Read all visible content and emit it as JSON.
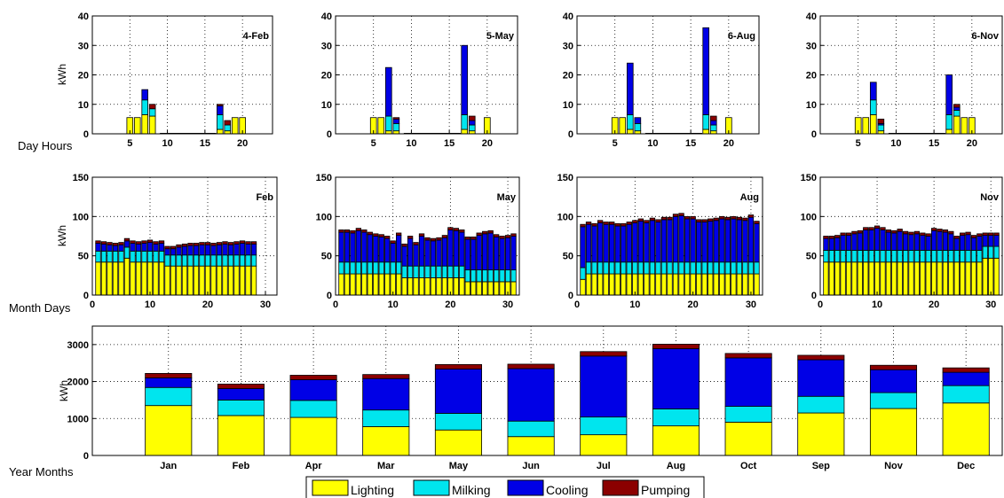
{
  "colors": {
    "Lighting": "#ffff00",
    "Milking": "#00e5ee",
    "Cooling": "#0000e6",
    "Pumping": "#8b0000",
    "grid": "#000000",
    "background": "#ffffff"
  },
  "row_labels": {
    "hours": "Day Hours",
    "days": "Month Days",
    "months": "Year Months"
  },
  "legend": [
    "Lighting",
    "Milking",
    "Cooling",
    "Pumping"
  ],
  "chart_data": [
    {
      "id": "hourly-feb",
      "type": "bar",
      "stacked": true,
      "title": "4-Feb",
      "ylabel": "kWh",
      "ylim": [
        0,
        40
      ],
      "yticks": [
        0,
        10,
        20,
        30,
        40
      ],
      "xlim": [
        0,
        24
      ],
      "xticks": [
        5,
        10,
        15,
        20
      ],
      "grid": true,
      "x": [
        5,
        6,
        7,
        8,
        17,
        18,
        19,
        20
      ],
      "series": [
        {
          "name": "Lighting",
          "values": [
            5.5,
            5.5,
            6.5,
            6,
            1.5,
            1,
            5.5,
            5.5
          ]
        },
        {
          "name": "Milking",
          "values": [
            0,
            0,
            5,
            2.5,
            5,
            2,
            0,
            0
          ]
        },
        {
          "name": "Cooling",
          "values": [
            0,
            0,
            3.5,
            0,
            3,
            0,
            0,
            0
          ]
        },
        {
          "name": "Pumping",
          "values": [
            0,
            0,
            0,
            1.5,
            0.5,
            1.5,
            0,
            0
          ]
        }
      ]
    },
    {
      "id": "hourly-may",
      "type": "bar",
      "stacked": true,
      "title": "5-May",
      "ylabel": "",
      "ylim": [
        0,
        40
      ],
      "yticks": [
        0,
        10,
        20,
        30,
        40
      ],
      "xlim": [
        0,
        24
      ],
      "xticks": [
        5,
        10,
        15,
        20
      ],
      "grid": true,
      "x": [
        5,
        6,
        7,
        8,
        17,
        18,
        20
      ],
      "series": [
        {
          "name": "Lighting",
          "values": [
            5.5,
            5.5,
            1,
            1,
            1.5,
            1,
            5.5
          ]
        },
        {
          "name": "Milking",
          "values": [
            0,
            0,
            5,
            2.5,
            5,
            2,
            0
          ]
        },
        {
          "name": "Cooling",
          "values": [
            0,
            0,
            16.5,
            1.5,
            23.5,
            1.5,
            0
          ]
        },
        {
          "name": "Pumping",
          "values": [
            0,
            0,
            0,
            0.5,
            0,
            1.5,
            0
          ]
        }
      ]
    },
    {
      "id": "hourly-aug",
      "type": "bar",
      "stacked": true,
      "title": "6-Aug",
      "ylabel": "",
      "ylim": [
        0,
        40
      ],
      "yticks": [
        0,
        10,
        20,
        30,
        40
      ],
      "xlim": [
        0,
        24
      ],
      "xticks": [
        5,
        10,
        15,
        20
      ],
      "grid": true,
      "x": [
        5,
        6,
        7,
        8,
        17,
        18,
        20
      ],
      "series": [
        {
          "name": "Lighting",
          "values": [
            5.5,
            5.5,
            1.5,
            1,
            1.5,
            1,
            5.5
          ]
        },
        {
          "name": "Milking",
          "values": [
            0,
            0,
            5,
            2.5,
            5,
            2,
            0
          ]
        },
        {
          "name": "Cooling",
          "values": [
            0,
            0,
            17.5,
            2,
            29.5,
            1.5,
            0
          ]
        },
        {
          "name": "Pumping",
          "values": [
            0,
            0,
            0,
            0,
            0,
            1.5,
            0
          ]
        }
      ]
    },
    {
      "id": "hourly-nov",
      "type": "bar",
      "stacked": true,
      "title": "6-Nov",
      "ylabel": "",
      "ylim": [
        0,
        40
      ],
      "yticks": [
        0,
        10,
        20,
        30,
        40
      ],
      "xlim": [
        0,
        24
      ],
      "xticks": [
        5,
        10,
        15,
        20
      ],
      "grid": true,
      "x": [
        5,
        6,
        7,
        8,
        17,
        18,
        19,
        20
      ],
      "series": [
        {
          "name": "Lighting",
          "values": [
            5.5,
            5.5,
            6.5,
            1,
            1.5,
            6,
            5.5,
            5.5
          ]
        },
        {
          "name": "Milking",
          "values": [
            0,
            0,
            5,
            2,
            5,
            2,
            0,
            0
          ]
        },
        {
          "name": "Cooling",
          "values": [
            0,
            0,
            6,
            0.5,
            13.5,
            1,
            0,
            0
          ]
        },
        {
          "name": "Pumping",
          "values": [
            0,
            0,
            0,
            1.5,
            0,
            1,
            0,
            0
          ]
        }
      ]
    },
    {
      "id": "daily-feb",
      "type": "bar",
      "stacked": true,
      "title": "Feb",
      "ylabel": "kWh",
      "ylim": [
        0,
        150
      ],
      "yticks": [
        0,
        50,
        100,
        150
      ],
      "xlim": [
        0,
        32
      ],
      "xticks": [
        0,
        10,
        20,
        30
      ],
      "grid": true,
      "x": [
        1,
        2,
        3,
        4,
        5,
        6,
        7,
        8,
        9,
        10,
        11,
        12,
        13,
        14,
        15,
        16,
        17,
        18,
        19,
        20,
        21,
        22,
        23,
        24,
        25,
        26,
        27,
        28
      ],
      "series": [
        {
          "name": "Lighting",
          "values": [
            42,
            42,
            42,
            42,
            42,
            47,
            42,
            42,
            42,
            42,
            42,
            42,
            37,
            37,
            37,
            37,
            37,
            37,
            37,
            37,
            37,
            37,
            37,
            37,
            37,
            37,
            37,
            37
          ]
        },
        {
          "name": "Milking",
          "values": [
            14,
            14,
            14,
            14,
            14,
            14,
            14,
            14,
            14,
            14,
            14,
            14,
            14,
            14,
            14,
            14,
            14,
            14,
            14,
            14,
            14,
            14,
            14,
            14,
            14,
            14,
            14,
            14
          ]
        },
        {
          "name": "Cooling",
          "values": [
            10,
            9,
            8,
            7,
            8,
            8,
            10,
            9,
            10,
            11,
            9,
            10,
            8,
            8,
            10,
            11,
            12,
            12,
            13,
            13,
            12,
            13,
            14,
            13,
            14,
            15,
            14,
            14
          ]
        },
        {
          "name": "Pumping",
          "values": [
            3,
            3,
            3,
            3,
            3,
            3,
            3,
            3,
            3,
            3,
            3,
            3,
            3,
            3,
            3,
            3,
            3,
            3,
            3,
            3,
            3,
            3,
            3,
            3,
            3,
            3,
            3,
            3
          ]
        }
      ]
    },
    {
      "id": "daily-may",
      "type": "bar",
      "stacked": true,
      "title": "May",
      "ylabel": "",
      "ylim": [
        0,
        150
      ],
      "yticks": [
        0,
        50,
        100,
        150
      ],
      "xlim": [
        0,
        32
      ],
      "xticks": [
        0,
        10,
        20,
        30
      ],
      "grid": true,
      "x": [
        1,
        2,
        3,
        4,
        5,
        6,
        7,
        8,
        9,
        10,
        11,
        12,
        13,
        14,
        15,
        16,
        17,
        18,
        19,
        20,
        21,
        22,
        23,
        24,
        25,
        26,
        27,
        28,
        29,
        30,
        31
      ],
      "series": [
        {
          "name": "Lighting",
          "values": [
            27,
            27,
            27,
            27,
            27,
            27,
            27,
            27,
            27,
            27,
            27,
            22,
            22,
            22,
            22,
            22,
            22,
            22,
            22,
            22,
            22,
            22,
            17,
            17,
            17,
            17,
            17,
            17,
            17,
            17,
            17
          ]
        },
        {
          "name": "Milking",
          "values": [
            15,
            15,
            15,
            15,
            15,
            15,
            15,
            15,
            15,
            15,
            15,
            15,
            15,
            15,
            15,
            15,
            15,
            15,
            15,
            15,
            15,
            15,
            15,
            15,
            15,
            15,
            15,
            15,
            15,
            15,
            15
          ]
        },
        {
          "name": "Cooling",
          "values": [
            38,
            38,
            37,
            40,
            38,
            35,
            33,
            32,
            30,
            24,
            34,
            25,
            35,
            27,
            38,
            33,
            32,
            33,
            36,
            46,
            45,
            43,
            39,
            39,
            44,
            46,
            47,
            42,
            40,
            41,
            43
          ]
        },
        {
          "name": "Pumping",
          "values": [
            3,
            3,
            3,
            3,
            3,
            3,
            3,
            3,
            3,
            3,
            3,
            3,
            3,
            3,
            3,
            3,
            3,
            3,
            3,
            3,
            3,
            3,
            3,
            3,
            3,
            3,
            3,
            3,
            3,
            3,
            3
          ]
        }
      ]
    },
    {
      "id": "daily-aug",
      "type": "bar",
      "stacked": true,
      "title": "Aug",
      "ylabel": "",
      "ylim": [
        0,
        150
      ],
      "yticks": [
        0,
        50,
        100,
        150
      ],
      "xlim": [
        0,
        32
      ],
      "xticks": [
        0,
        10,
        20,
        30
      ],
      "grid": true,
      "x": [
        1,
        2,
        3,
        4,
        5,
        6,
        7,
        8,
        9,
        10,
        11,
        12,
        13,
        14,
        15,
        16,
        17,
        18,
        19,
        20,
        21,
        22,
        23,
        24,
        25,
        26,
        27,
        28,
        29,
        30,
        31
      ],
      "series": [
        {
          "name": "Lighting",
          "values": [
            20,
            27,
            27,
            27,
            27,
            27,
            27,
            27,
            27,
            27,
            27,
            27,
            27,
            27,
            27,
            27,
            27,
            27,
            27,
            27,
            27,
            27,
            27,
            27,
            27,
            27,
            27,
            27,
            27,
            27,
            27
          ]
        },
        {
          "name": "Milking",
          "values": [
            15,
            15,
            15,
            15,
            15,
            15,
            15,
            15,
            15,
            15,
            15,
            15,
            15,
            15,
            15,
            15,
            15,
            15,
            15,
            15,
            15,
            15,
            15,
            15,
            15,
            15,
            15,
            15,
            15,
            15,
            15
          ]
        },
        {
          "name": "Cooling",
          "values": [
            52,
            48,
            46,
            50,
            48,
            48,
            46,
            46,
            48,
            50,
            52,
            50,
            53,
            51,
            54,
            54,
            58,
            59,
            55,
            55,
            51,
            51,
            52,
            53,
            55,
            54,
            55,
            54,
            53,
            57,
            49
          ]
        },
        {
          "name": "Pumping",
          "values": [
            3,
            3,
            3,
            3,
            3,
            3,
            3,
            3,
            3,
            3,
            3,
            3,
            3,
            3,
            3,
            3,
            3,
            3,
            3,
            3,
            3,
            3,
            3,
            3,
            3,
            3,
            3,
            3,
            3,
            3,
            3
          ]
        }
      ]
    },
    {
      "id": "daily-nov",
      "type": "bar",
      "stacked": true,
      "title": "Nov",
      "ylabel": "",
      "ylim": [
        0,
        150
      ],
      "yticks": [
        0,
        50,
        100,
        150
      ],
      "xlim": [
        0,
        32
      ],
      "xticks": [
        0,
        10,
        20,
        30
      ],
      "grid": true,
      "x": [
        1,
        2,
        3,
        4,
        5,
        6,
        7,
        8,
        9,
        10,
        11,
        12,
        13,
        14,
        15,
        16,
        17,
        18,
        19,
        20,
        21,
        22,
        23,
        24,
        25,
        26,
        27,
        28,
        29,
        30,
        31
      ],
      "series": [
        {
          "name": "Lighting",
          "values": [
            42,
            42,
            42,
            42,
            42,
            42,
            42,
            42,
            42,
            42,
            42,
            42,
            42,
            42,
            42,
            42,
            42,
            42,
            42,
            42,
            42,
            42,
            42,
            42,
            42,
            42,
            42,
            42,
            47,
            47,
            47
          ]
        },
        {
          "name": "Milking",
          "values": [
            15,
            15,
            15,
            15,
            15,
            15,
            15,
            15,
            15,
            15,
            15,
            15,
            15,
            15,
            15,
            15,
            15,
            15,
            15,
            15,
            15,
            15,
            15,
            15,
            15,
            15,
            15,
            15,
            15,
            15,
            15
          ]
        },
        {
          "name": "Cooling",
          "values": [
            15,
            15,
            16,
            19,
            19,
            21,
            22,
            26,
            26,
            28,
            26,
            23,
            22,
            24,
            21,
            20,
            21,
            19,
            18,
            25,
            24,
            23,
            21,
            15,
            19,
            20,
            16,
            18,
            14,
            14,
            14
          ]
        },
        {
          "name": "Pumping",
          "values": [
            3,
            3,
            3,
            3,
            3,
            3,
            3,
            3,
            3,
            3,
            3,
            3,
            3,
            3,
            3,
            3,
            3,
            3,
            3,
            3,
            3,
            3,
            3,
            3,
            3,
            3,
            3,
            3,
            3,
            3,
            3
          ]
        }
      ]
    },
    {
      "id": "monthly",
      "type": "bar",
      "stacked": true,
      "title": "",
      "ylabel": "kWh",
      "ylim": [
        0,
        3500
      ],
      "yticks": [
        0,
        1000,
        2000,
        3000
      ],
      "grid": true,
      "categories": [
        "Jan",
        "Feb",
        "Apr",
        "Mar",
        "May",
        "Jun",
        "Jul",
        "Aug",
        "Oct",
        "Sep",
        "Nov",
        "Dec"
      ],
      "series": [
        {
          "name": "Lighting",
          "values": [
            1350,
            1080,
            1030,
            780,
            690,
            510,
            560,
            800,
            900,
            1150,
            1270,
            1420
          ]
        },
        {
          "name": "Milking",
          "values": [
            490,
            420,
            460,
            450,
            450,
            420,
            480,
            460,
            430,
            450,
            430,
            470
          ]
        },
        {
          "name": "Cooling",
          "values": [
            260,
            310,
            560,
            850,
            1200,
            1420,
            1650,
            1630,
            1310,
            990,
            620,
            360
          ]
        },
        {
          "name": "Pumping",
          "values": [
            120,
            120,
            120,
            110,
            120,
            120,
            120,
            120,
            120,
            120,
            120,
            120
          ]
        }
      ]
    }
  ]
}
